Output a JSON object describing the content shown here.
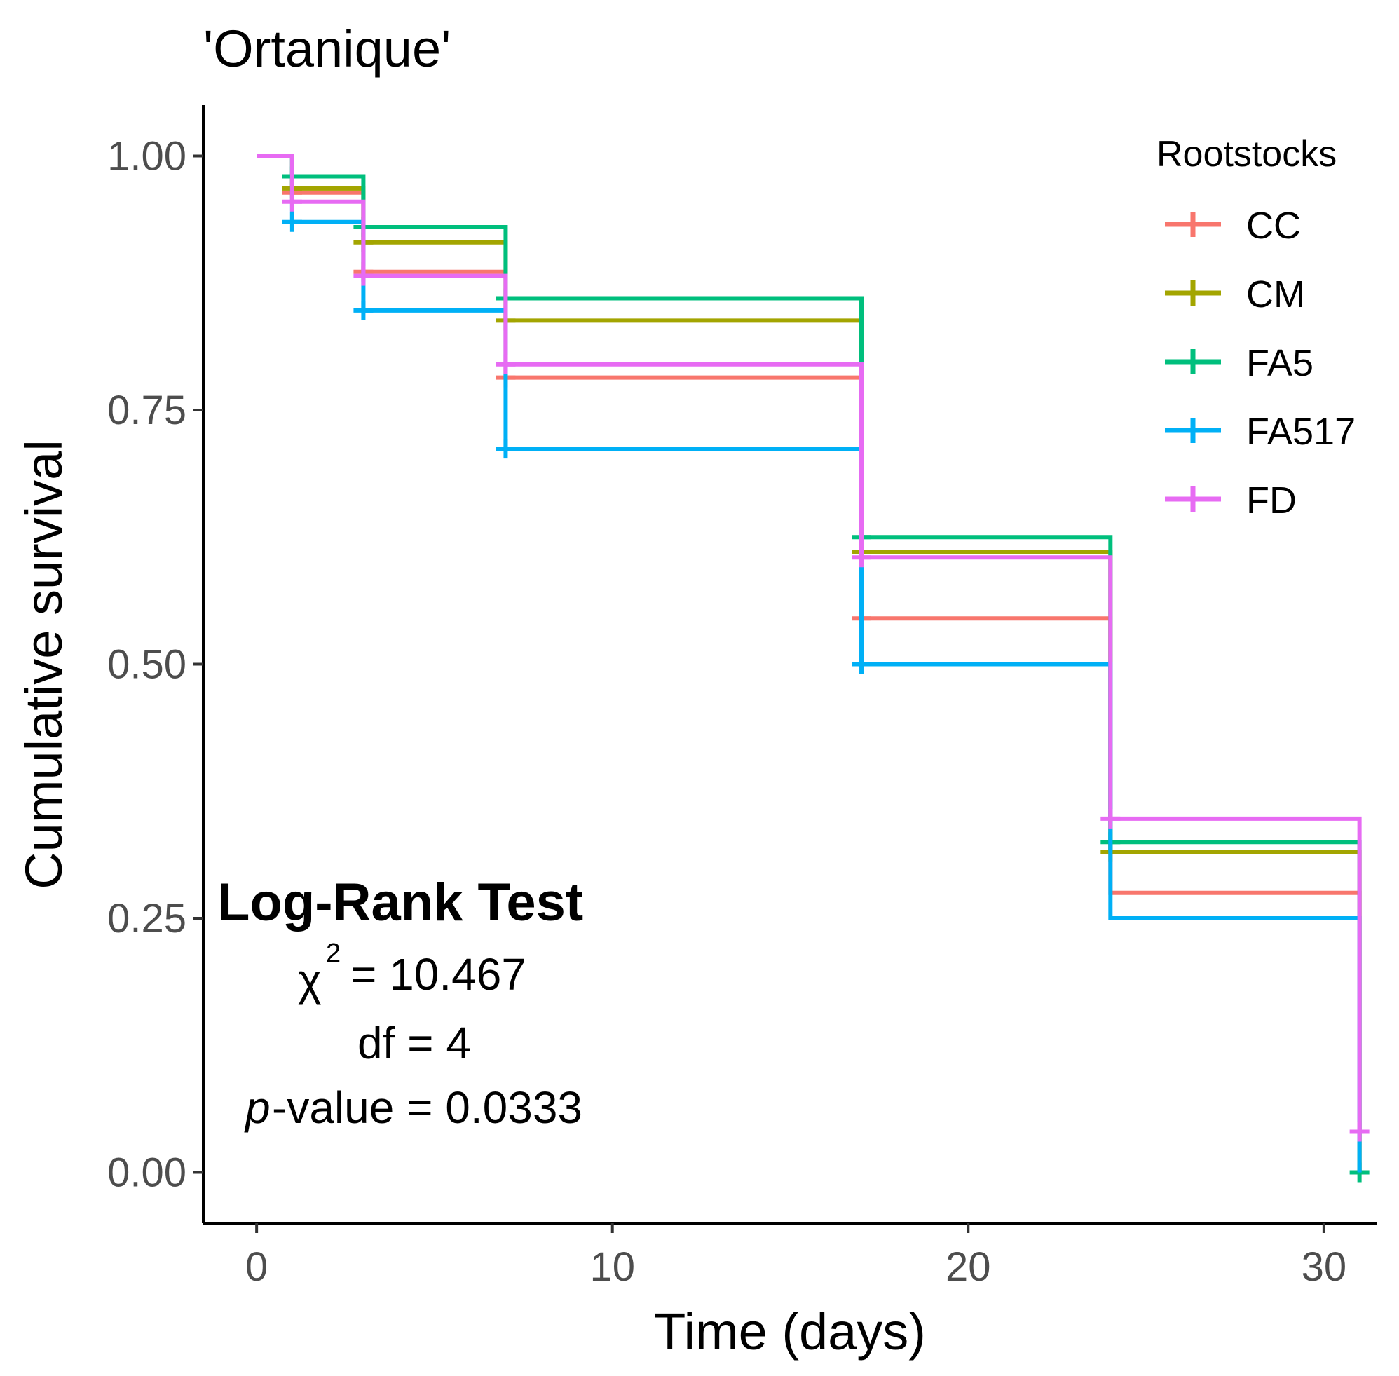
{
  "chart_data": {
    "type": "line",
    "subtype": "kaplan-meier step",
    "title": "'Ortanique'",
    "xlabel": "Time (days)",
    "ylabel": "Cumulative survival",
    "xlim": [
      -1.5,
      31.5
    ],
    "ylim": [
      -0.05,
      1.05
    ],
    "xticks": [
      0,
      10,
      20,
      30
    ],
    "xtick_labels": [
      "0",
      "10",
      "20",
      "30"
    ],
    "yticks": [
      0,
      0.25,
      0.5,
      0.75,
      1
    ],
    "ytick_labels": [
      "0.00",
      "0.25",
      "0.50",
      "0.75",
      "1.00"
    ],
    "legend": {
      "title": "Rootstocks",
      "position": "top-right"
    },
    "series": [
      {
        "name": "CC",
        "color": "#F8766D",
        "times": [
          0,
          1,
          3,
          7,
          17,
          24,
          31
        ],
        "survival": [
          1.0,
          0.964,
          0.886,
          0.782,
          0.545,
          0.275,
          0.0
        ],
        "censor_times": [
          1,
          3,
          7,
          17
        ]
      },
      {
        "name": "CM",
        "color": "#A3A500",
        "times": [
          0,
          1,
          3,
          7,
          17,
          24,
          31
        ],
        "survival": [
          1.0,
          0.968,
          0.915,
          0.838,
          0.61,
          0.315,
          0.0
        ],
        "censor_times": [
          1,
          3,
          7,
          17,
          24
        ]
      },
      {
        "name": "FA5",
        "color": "#00BF7D",
        "times": [
          0,
          1,
          3,
          7,
          17,
          24,
          31
        ],
        "survival": [
          1.0,
          0.98,
          0.93,
          0.86,
          0.625,
          0.325,
          0.0
        ],
        "censor_times": [
          1,
          3,
          7,
          17,
          24,
          31
        ]
      },
      {
        "name": "FA517",
        "color": "#00B0F6",
        "times": [
          0,
          1,
          3,
          7,
          17,
          24,
          31
        ],
        "survival": [
          1.0,
          0.935,
          0.848,
          0.712,
          0.5,
          0.25,
          0.0
        ],
        "censor_times": [
          1,
          3,
          7,
          17
        ]
      },
      {
        "name": "FD",
        "color": "#E76BF3",
        "times": [
          0,
          1,
          3,
          7,
          17,
          24,
          31
        ],
        "survival": [
          1.0,
          0.955,
          0.882,
          0.795,
          0.605,
          0.348,
          0.04
        ],
        "censor_times": [
          1,
          3,
          7,
          17,
          24,
          31
        ]
      }
    ],
    "annotation": {
      "title": "Log-Rank Test",
      "chi_symbol": "χ",
      "chi_superscript": "2",
      "chi_value": "= 10.467",
      "df": "df = 4",
      "p_symbol": "p",
      "p_text": "-value = 0.0333"
    }
  }
}
